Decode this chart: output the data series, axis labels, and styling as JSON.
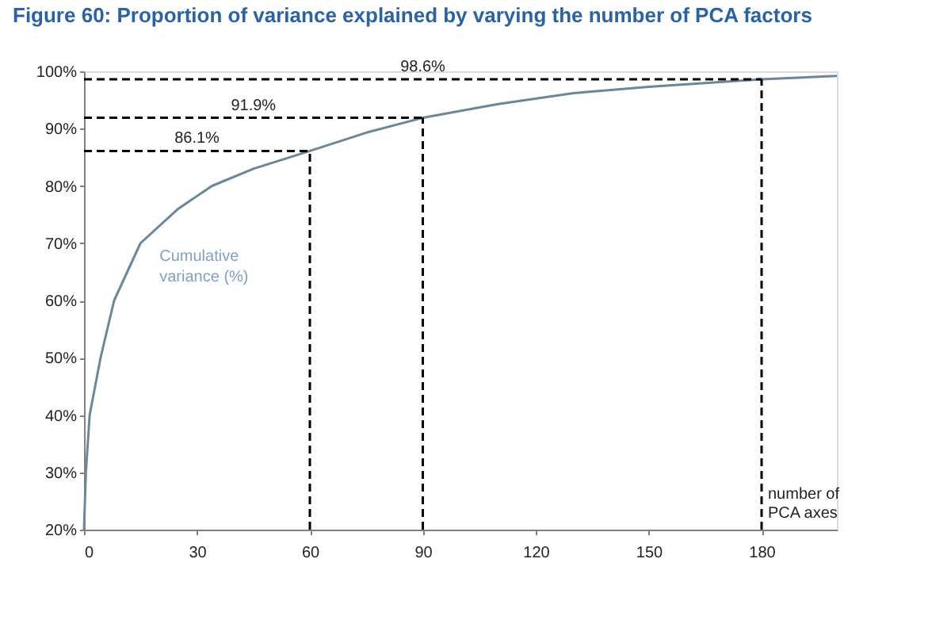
{
  "chart_data": {
    "type": "line",
    "title": "Figure 60: Proportion of variance explained by varying the number of PCA factors",
    "xlabel": "number of\nPCA axes",
    "series": [
      {
        "name": "Cumulative\nvariance (%)",
        "color": "#6b879c",
        "x": [
          0,
          0.5,
          1.5,
          4.4,
          8,
          15,
          25,
          34,
          45,
          60,
          75,
          90,
          110,
          130,
          150,
          180,
          200
        ],
        "values": [
          20,
          30,
          40,
          50,
          60,
          70,
          76,
          80,
          83,
          86.1,
          89.3,
          91.9,
          94.3,
          96.2,
          97.3,
          98.6,
          99.2
        ]
      }
    ],
    "xlim": [
      0,
      200
    ],
    "ylim": [
      20,
      100
    ],
    "xticks": [
      0,
      30,
      60,
      90,
      120,
      150,
      180
    ],
    "yticks": [
      {
        "value": 20,
        "label": "20%"
      },
      {
        "value": 30,
        "label": "30%"
      },
      {
        "value": 40,
        "label": "40%"
      },
      {
        "value": 50,
        "label": "50%"
      },
      {
        "value": 60,
        "label": "60%"
      },
      {
        "value": 70,
        "label": "70%"
      },
      {
        "value": 80,
        "label": "80%"
      },
      {
        "value": 90,
        "label": "90%"
      },
      {
        "value": 100,
        "label": "100%"
      }
    ],
    "ref_lines": [
      {
        "axis": "y",
        "value": 86.1,
        "label": "86.1%",
        "color": "#000000",
        "line_style": "dashed"
      },
      {
        "axis": "y",
        "value": 91.9,
        "label": "91.9%",
        "color": "#000000",
        "line_style": "dashed"
      },
      {
        "axis": "y",
        "value": 98.6,
        "label": "98.6%",
        "color": "#000000",
        "line_style": "dashed"
      },
      {
        "axis": "x",
        "value": 60,
        "color": "#000000",
        "line_style": "dashed"
      },
      {
        "axis": "x",
        "value": 90,
        "color": "#000000",
        "line_style": "dashed"
      },
      {
        "axis": "x",
        "value": 180,
        "color": "#000000",
        "line_style": "dashed"
      }
    ],
    "grid": false,
    "legend": false,
    "marker": "none",
    "line_style": "solid"
  }
}
